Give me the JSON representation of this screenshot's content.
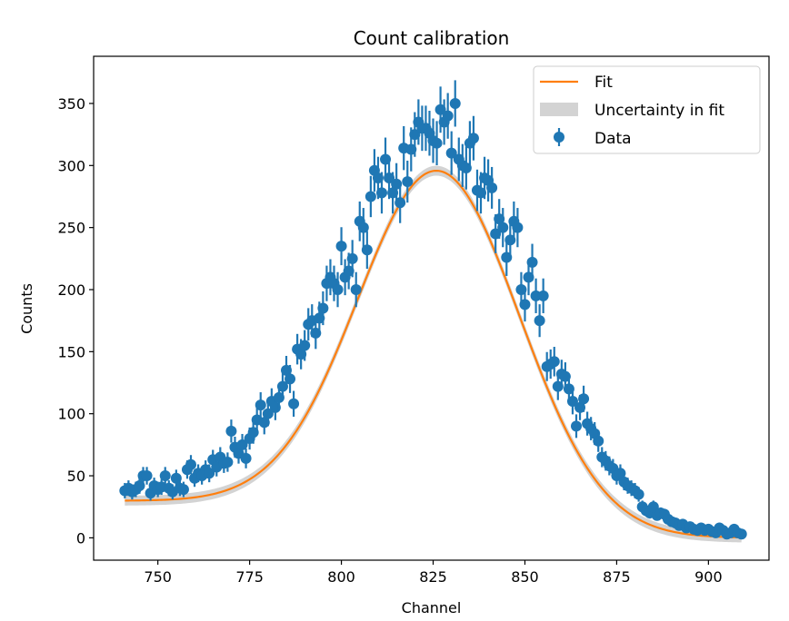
{
  "chart_data": {
    "type": "scatter",
    "title": "Count calibration",
    "xlabel": "Channel",
    "ylabel": "Counts",
    "xlim": [
      732.5,
      916.5
    ],
    "ylim": [
      -18,
      388
    ],
    "x_ticks": [
      750,
      775,
      800,
      825,
      850,
      875,
      900
    ],
    "y_ticks": [
      0,
      50,
      100,
      150,
      200,
      250,
      300,
      350
    ],
    "legend_position": "top-right",
    "colors": {
      "data": "#1f77b4",
      "fit": "#ff7f0e",
      "band": "#d3d3d3"
    },
    "legend": [
      "Fit",
      "Uncertainty in fit",
      "Data"
    ],
    "series": [
      {
        "name": "Data",
        "kind": "errorbar",
        "x": [
          741,
          742,
          743,
          744,
          745,
          746,
          747,
          748,
          749,
          750,
          751,
          752,
          753,
          754,
          755,
          756,
          757,
          758,
          759,
          760,
          761,
          762,
          763,
          764,
          765,
          766,
          767,
          768,
          769,
          770,
          771,
          772,
          773,
          774,
          775,
          776,
          777,
          778,
          779,
          780,
          781,
          782,
          783,
          784,
          785,
          786,
          787,
          788,
          789,
          790,
          791,
          792,
          793,
          794,
          795,
          796,
          797,
          798,
          799,
          800,
          801,
          802,
          803,
          804,
          805,
          806,
          807,
          808,
          809,
          810,
          811,
          812,
          813,
          814,
          815,
          816,
          817,
          818,
          819,
          820,
          821,
          822,
          823,
          824,
          825,
          826,
          827,
          828,
          829,
          830,
          831,
          832,
          833,
          834,
          835,
          836,
          837,
          838,
          839,
          840,
          841,
          842,
          843,
          844,
          845,
          846,
          847,
          848,
          849,
          850,
          851,
          852,
          853,
          854,
          855,
          856,
          857,
          858,
          859,
          860,
          861,
          862,
          863,
          864,
          865,
          866,
          867,
          868,
          869,
          870,
          871,
          872,
          873,
          874,
          875,
          876,
          877,
          878,
          879,
          880,
          881,
          882,
          883,
          884,
          885,
          886,
          887,
          888,
          889,
          890,
          891,
          892,
          893,
          894,
          895,
          896,
          897,
          898,
          899,
          900,
          901,
          902,
          903,
          904,
          905,
          906,
          907,
          908,
          909
        ],
        "y": [
          38,
          40,
          37,
          39,
          42,
          50,
          50,
          36,
          42,
          39,
          41,
          50,
          40,
          37,
          48,
          40,
          39,
          55,
          59,
          48,
          52,
          50,
          55,
          52,
          63,
          57,
          65,
          60,
          61,
          86,
          73,
          68,
          75,
          64,
          80,
          85,
          95,
          107,
          93,
          100,
          110,
          105,
          113,
          122,
          135,
          128,
          108,
          152,
          148,
          155,
          172,
          175,
          165,
          177,
          185,
          205,
          210,
          205,
          200,
          235,
          210,
          215,
          225,
          200,
          255,
          250,
          232,
          275,
          296,
          290,
          278,
          305,
          290,
          278,
          285,
          270,
          314,
          287,
          313,
          325,
          335,
          330,
          330,
          326,
          320,
          318,
          345,
          335,
          340,
          310,
          350,
          305,
          300,
          298,
          318,
          322,
          280,
          278,
          290,
          288,
          282,
          245,
          257,
          250,
          226,
          240,
          255,
          250,
          200,
          188,
          210,
          222,
          195,
          175,
          195,
          138,
          140,
          142,
          122,
          132,
          130,
          120,
          110,
          90,
          105,
          112,
          92,
          88,
          84,
          78,
          65,
          62,
          58,
          56,
          50,
          52,
          45,
          42,
          40,
          38,
          35,
          25,
          22,
          20,
          25,
          18,
          20,
          19,
          15,
          13,
          12,
          10,
          11,
          8,
          9,
          7,
          6,
          8,
          6,
          7,
          5,
          4,
          8,
          6,
          3,
          4,
          7,
          4,
          3
        ],
        "yerr": [
          6.2,
          6.3,
          6.1,
          6.2,
          6.5,
          7.1,
          7.1,
          6.0,
          6.5,
          6.2,
          6.4,
          7.1,
          6.3,
          6.1,
          6.9,
          6.3,
          6.2,
          7.4,
          7.7,
          6.9,
          7.2,
          7.1,
          7.4,
          7.2,
          7.9,
          7.5,
          8.1,
          7.7,
          7.8,
          9.3,
          8.5,
          8.2,
          8.7,
          8.0,
          8.9,
          9.2,
          9.7,
          10.3,
          9.6,
          10.0,
          10.5,
          10.2,
          10.6,
          11.0,
          11.6,
          11.3,
          10.4,
          12.3,
          12.2,
          12.4,
          13.1,
          13.2,
          12.8,
          13.3,
          13.6,
          14.3,
          14.5,
          14.3,
          14.1,
          15.3,
          14.5,
          14.7,
          15.0,
          14.1,
          16.0,
          15.8,
          15.2,
          16.6,
          17.2,
          17.0,
          16.7,
          17.5,
          17.0,
          16.7,
          16.9,
          16.4,
          17.7,
          16.9,
          17.7,
          18.0,
          18.3,
          18.2,
          18.2,
          18.1,
          17.9,
          17.8,
          18.6,
          18.3,
          18.4,
          17.6,
          18.7,
          17.5,
          17.3,
          17.3,
          17.8,
          17.9,
          16.7,
          16.7,
          17.0,
          17.0,
          16.8,
          15.7,
          16.0,
          15.8,
          15.0,
          15.5,
          16.0,
          15.8,
          14.1,
          13.7,
          14.5,
          14.9,
          14.0,
          13.2,
          14.0,
          11.7,
          11.8,
          11.9,
          11.0,
          11.5,
          11.4,
          11.0,
          10.5,
          9.5,
          10.2,
          10.6,
          9.6,
          9.4,
          9.2,
          8.8,
          8.1,
          7.9,
          7.6,
          7.5,
          7.1,
          7.2,
          6.7,
          6.5,
          6.3,
          6.2,
          5.9,
          5.0,
          4.7,
          4.5,
          5.0,
          4.2,
          4.5,
          4.4,
          3.9,
          3.6,
          3.5,
          3.2,
          3.3,
          2.8,
          3.0,
          2.6,
          2.4,
          2.8,
          2.4,
          2.6,
          2.2,
          2.0,
          2.8,
          2.4,
          1.7,
          2.0,
          2.6,
          2.0,
          1.7
        ]
      },
      {
        "name": "Fit",
        "kind": "gaussian_plus_background",
        "amplitude": 295,
        "center": 826,
        "sigma": 22.5,
        "background_level": 30,
        "background_center": 790,
        "background_width": 10,
        "x_range": [
          741,
          909
        ],
        "uncertainty": 4
      }
    ]
  }
}
